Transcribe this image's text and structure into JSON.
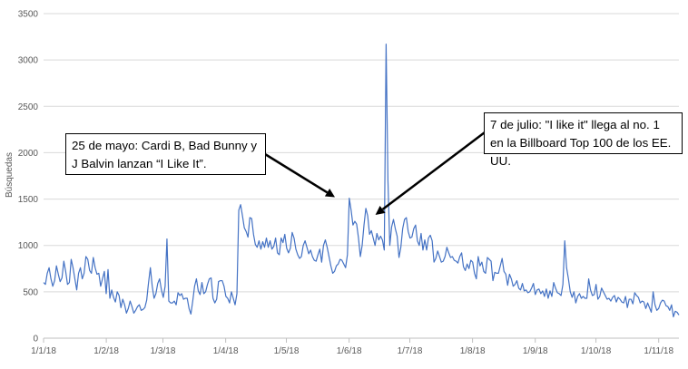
{
  "chart_data": {
    "type": "line",
    "title": "",
    "xlabel": "",
    "ylabel": "Búsquedas",
    "ylim": [
      0,
      3500
    ],
    "yticks": [
      0,
      500,
      1000,
      1500,
      2000,
      2500,
      3000,
      3500
    ],
    "xtick_labels": [
      "1/1/18",
      "1/2/18",
      "1/3/18",
      "1/4/18",
      "1/5/18",
      "1/6/18",
      "1/7/18",
      "1/8/18",
      "1/9/18",
      "1/10/18",
      "1/11/18"
    ],
    "xtick_days": [
      0,
      31,
      59,
      90,
      120,
      151,
      181,
      212,
      243,
      273,
      304
    ],
    "x_start": "2018-01-01",
    "x_end_day": 314,
    "grid": true,
    "series": [
      {
        "name": "Búsquedas",
        "color": "#4472c4",
        "values": [
          600,
          580,
          700,
          760,
          640,
          560,
          620,
          780,
          690,
          610,
          650,
          830,
          720,
          580,
          600,
          850,
          760,
          640,
          520,
          700,
          760,
          640,
          700,
          880,
          850,
          730,
          700,
          870,
          760,
          690,
          700,
          560,
          640,
          720,
          480,
          740,
          430,
          520,
          440,
          390,
          500,
          460,
          330,
          420,
          360,
          270,
          320,
          400,
          340,
          270,
          300,
          340,
          360,
          300,
          310,
          330,
          410,
          600,
          760,
          560,
          430,
          480,
          590,
          640,
          520,
          440,
          560,
          1070,
          400,
          380,
          380,
          400,
          360,
          490,
          460,
          480,
          420,
          430,
          430,
          320,
          260,
          400,
          560,
          640,
          510,
          470,
          600,
          480,
          500,
          580,
          640,
          650,
          430,
          380,
          420,
          610,
          620,
          620,
          560,
          450,
          430,
          380,
          500,
          430,
          360,
          480,
          1380,
          1440,
          1320,
          1190,
          1150,
          1090,
          1300,
          1290,
          1120,
          1010,
          980,
          1050,
          960,
          1040,
          980,
          1080,
          980,
          1050,
          960,
          990,
          1080,
          920,
          900,
          1080,
          1030,
          1120,
          970,
          920,
          970,
          1140,
          1080,
          960,
          900,
          860,
          880,
          1000,
          1050,
          980,
          910,
          950,
          880,
          840,
          830,
          900,
          960,
          820,
          1000,
          1060,
          980,
          880,
          780,
          700,
          720,
          780,
          800,
          850,
          840,
          800,
          760,
          900,
          1510,
          1380,
          1220,
          1260,
          1230,
          1080,
          880,
          1000,
          1220,
          1400,
          1320,
          1120,
          1160,
          1080,
          1000,
          1130,
          1060,
          1100,
          1060,
          950,
          3170,
          1700,
          1000,
          1200,
          1280,
          1180,
          1100,
          870,
          980,
          1180,
          1280,
          1300,
          1150,
          1080,
          1090,
          1180,
          1220,
          1050,
          1000,
          1130,
          950,
          1060,
          950,
          1080,
          1110,
          1050,
          820,
          860,
          940,
          880,
          820,
          830,
          880,
          980,
          920,
          870,
          880,
          840,
          830,
          810,
          880,
          920,
          770,
          730,
          800,
          750,
          840,
          820,
          700,
          640,
          880,
          780,
          820,
          720,
          700,
          870,
          850,
          830,
          620,
          710,
          700,
          700,
          780,
          860,
          720,
          690,
          570,
          690,
          640,
          560,
          580,
          620,
          540,
          520,
          590,
          510,
          520,
          490,
          500,
          540,
          590,
          470,
          520,
          530,
          480,
          510,
          450,
          530,
          430,
          510,
          450,
          600,
          540,
          490,
          480,
          460,
          580,
          1050,
          760,
          640,
          500,
          440,
          500,
          380,
          450,
          480,
          430,
          450,
          430,
          430,
          640,
          520,
          460,
          470,
          580,
          420,
          450,
          540,
          500,
          460,
          420,
          430,
          400,
          440,
          460,
          390,
          440,
          420,
          390,
          380,
          450,
          330,
          420,
          420,
          370,
          490,
          460,
          440,
          380,
          400,
          390,
          320,
          380,
          330,
          280,
          500,
          360,
          300,
          320,
          380,
          410,
          400,
          350,
          340,
          300,
          360,
          230,
          290,
          280,
          250
        ]
      }
    ],
    "annotations": [
      {
        "text": "25 de mayo: Cardi B, Bad Bunny y J Balvin lanzan “I Like It”.",
        "target_day": 144,
        "target_value": 1520
      },
      {
        "text": "7 de julio: \"I like it\" llega al no. 1 en la Billboard Top 100 de los EE. UU.",
        "target_day": 164,
        "target_value": 1330
      }
    ]
  }
}
